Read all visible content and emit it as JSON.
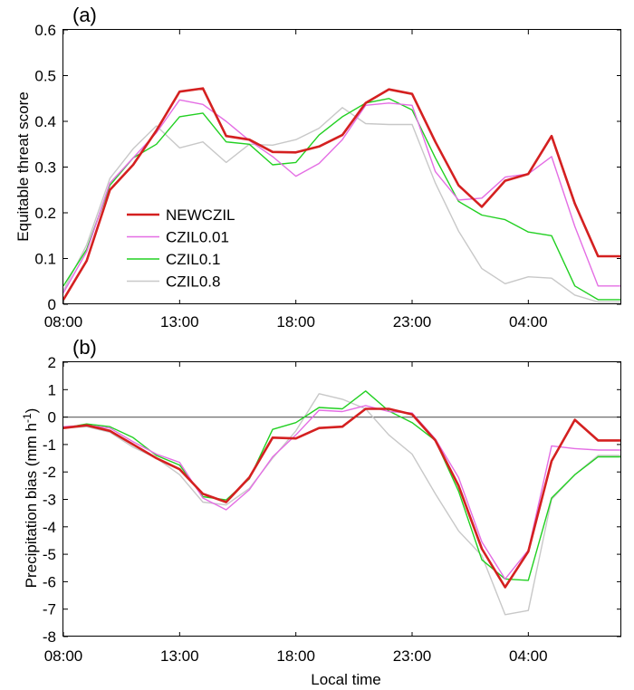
{
  "chart_data": [
    {
      "type": "line",
      "panel_label": "(a)",
      "ylabel": "Equitable threat score",
      "xlabel": "",
      "ylim": [
        0,
        0.6
      ],
      "yticks": [
        "0",
        "0.1",
        "0.2",
        "0.3",
        "0.4",
        "0.5",
        "0.6"
      ],
      "xticks": [
        "08:00",
        "13:00",
        "18:00",
        "23:00",
        "04:00"
      ],
      "x": [
        8,
        9,
        10,
        11,
        12,
        13,
        14,
        15,
        16,
        17,
        18,
        19,
        20,
        21,
        22,
        23,
        24,
        25,
        26,
        27,
        28,
        29,
        30,
        31,
        32
      ],
      "legend_position": "lower-left",
      "series": [
        {
          "name": "NEWCZIL",
          "color": "#d42020",
          "width": 2.6,
          "values": [
            0.01,
            0.095,
            0.25,
            0.305,
            0.38,
            0.465,
            0.472,
            0.368,
            0.36,
            0.333,
            0.332,
            0.345,
            0.37,
            0.44,
            0.47,
            0.46,
            0.355,
            0.26,
            0.213,
            0.27,
            0.285,
            0.368,
            0.22,
            0.105,
            0.105
          ]
        },
        {
          "name": "CZIL0.01",
          "color": "#e46ee4",
          "width": 1.4,
          "values": [
            0.025,
            0.115,
            0.265,
            0.32,
            0.375,
            0.447,
            0.437,
            0.4,
            0.358,
            0.323,
            0.28,
            0.308,
            0.36,
            0.435,
            0.44,
            0.435,
            0.29,
            0.228,
            0.232,
            0.278,
            0.285,
            0.323,
            0.17,
            0.04,
            0.04
          ]
        },
        {
          "name": "CZIL0.1",
          "color": "#22d022",
          "width": 1.4,
          "values": [
            0.04,
            0.12,
            0.26,
            0.32,
            0.35,
            0.41,
            0.418,
            0.355,
            0.35,
            0.305,
            0.31,
            0.37,
            0.41,
            0.44,
            0.45,
            0.425,
            0.32,
            0.225,
            0.195,
            0.185,
            0.158,
            0.15,
            0.04,
            0.01,
            0.01
          ]
        },
        {
          "name": "CZIL0.8",
          "color": "#c8c8c8",
          "width": 1.4,
          "values": [
            0.03,
            0.13,
            0.275,
            0.34,
            0.39,
            0.342,
            0.355,
            0.31,
            0.35,
            0.348,
            0.36,
            0.385,
            0.43,
            0.395,
            0.393,
            0.393,
            0.265,
            0.16,
            0.078,
            0.045,
            0.06,
            0.057,
            0.02,
            0.005,
            0.005
          ]
        }
      ]
    },
    {
      "type": "line",
      "panel_label": "(b)",
      "ylabel": "Precipitation bias (mm h",
      "ylabel_sup": "-1",
      "ylabel_suffix": ")",
      "xlabel": "Local time",
      "ylim": [
        -8,
        2
      ],
      "yticks": [
        "-8",
        "-7",
        "-6",
        "-5",
        "-4",
        "-3",
        "-2",
        "-1",
        "0",
        "1",
        "2"
      ],
      "xticks": [
        "08:00",
        "13:00",
        "18:00",
        "23:00",
        "04:00"
      ],
      "x": [
        8,
        9,
        10,
        11,
        12,
        13,
        14,
        15,
        16,
        17,
        18,
        19,
        20,
        21,
        22,
        23,
        24,
        25,
        26,
        27,
        28,
        29,
        30,
        31,
        32
      ],
      "zero_line": true,
      "series": [
        {
          "name": "NEWCZIL",
          "color": "#d42020",
          "width": 2.6,
          "values": [
            -0.4,
            -0.3,
            -0.5,
            -1.0,
            -1.5,
            -1.9,
            -2.8,
            -3.1,
            -2.2,
            -0.75,
            -0.78,
            -0.4,
            -0.35,
            0.3,
            0.3,
            0.1,
            -0.85,
            -2.5,
            -4.8,
            -6.2,
            -4.9,
            -1.6,
            -0.1,
            -0.85,
            -0.85
          ]
        },
        {
          "name": "CZIL0.01",
          "color": "#e46ee4",
          "width": 1.4,
          "values": [
            -0.35,
            -0.3,
            -0.4,
            -0.9,
            -1.35,
            -1.65,
            -2.95,
            -3.38,
            -2.65,
            -1.45,
            -0.65,
            0.25,
            0.2,
            0.42,
            0.2,
            0.15,
            -0.8,
            -2.2,
            -4.55,
            -5.9,
            -4.85,
            -1.05,
            -1.15,
            -1.2,
            -1.2
          ]
        },
        {
          "name": "CZIL0.1",
          "color": "#22d022",
          "width": 1.4,
          "values": [
            -0.4,
            -0.25,
            -0.35,
            -0.75,
            -1.4,
            -1.75,
            -2.9,
            -3.02,
            -2.25,
            -0.45,
            -0.2,
            0.35,
            0.3,
            0.95,
            0.22,
            -0.2,
            -0.85,
            -2.7,
            -5.2,
            -5.9,
            -5.95,
            -2.95,
            -2.1,
            -1.45,
            -1.45
          ]
        },
        {
          "name": "CZIL0.8",
          "color": "#c8c8c8",
          "width": 1.4,
          "values": [
            -0.4,
            -0.35,
            -0.55,
            -1.1,
            -1.5,
            -2.1,
            -3.1,
            -3.2,
            -2.6,
            -1.5,
            -0.5,
            0.85,
            0.65,
            0.3,
            -0.65,
            -1.35,
            -2.8,
            -4.15,
            -5.05,
            -7.2,
            -7.05,
            -3.0,
            -2.1,
            -1.4,
            -1.4
          ]
        }
      ]
    }
  ]
}
